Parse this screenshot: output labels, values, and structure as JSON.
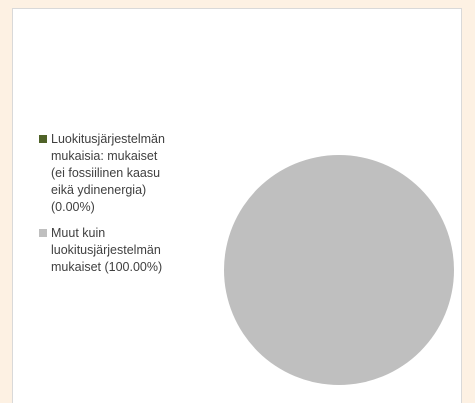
{
  "chart_data": {
    "type": "pie",
    "categories": [
      "Luokitusjärjestelmän mukaisia: mukaiset (ei fossiilinen kaasu eikä ydinenergia) (0.00%)",
      "Muut kuin luokitusjärjestelmän mukaiset (100.00%)"
    ],
    "values": [
      0.0,
      100.0
    ],
    "colors": [
      "#4f6228",
      "#bfbfbf"
    ],
    "title": "",
    "legend_position": "left"
  },
  "legend": {
    "items": [
      {
        "lines": [
          "Luokitusjärjestelmän",
          "mukaisia: mukaiset",
          "(ei fossiilinen kaasu",
          "eikä ydinenergia)",
          "(0.00%)"
        ],
        "color": "#4f6228"
      },
      {
        "lines": [
          "Muut kuin",
          "luokitusjärjestelmän",
          "mukaiset (100.00%)"
        ],
        "color": "#bfbfbf"
      }
    ]
  }
}
